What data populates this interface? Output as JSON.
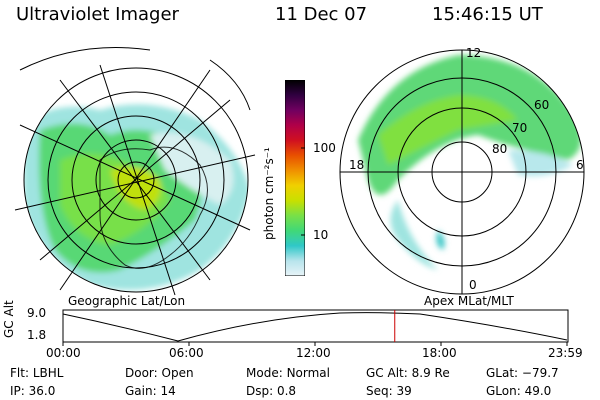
{
  "header": {
    "instrument": "Ultraviolet Imager",
    "date": "11 Dec 07",
    "time": "15:46:15 UT"
  },
  "left_map": {
    "caption": "Geographic Lat/Lon"
  },
  "right_map": {
    "caption": "Apex MLat/MLT",
    "mlt_labels": [
      "12",
      "18",
      "6",
      "0"
    ],
    "mlat_labels": [
      "60",
      "70",
      "80"
    ]
  },
  "colorbar": {
    "unit_label": "photon cm⁻²s⁻¹",
    "tick_labels": [
      "100",
      "10"
    ],
    "colors": [
      "#e8f4f8",
      "#b8e4ec",
      "#30c8c8",
      "#40d878",
      "#78e048",
      "#c8e000",
      "#f0d000",
      "#f09000",
      "#e85000",
      "#d01020",
      "#b00048",
      "#700060",
      "#300040",
      "#000000"
    ]
  },
  "altitude_plot": {
    "axis_label": "GC Alt",
    "y_max_label": "9.0",
    "y_min_label": "1.8",
    "time_ticks": [
      "00:00",
      "06:00",
      "12:00",
      "18:00",
      "23:59"
    ],
    "current_time_marker": "15:46",
    "marker_color": "#cc0000"
  },
  "status": {
    "filter": {
      "label": "Flt:",
      "value": "LBHL"
    },
    "ip": {
      "label": "IP:",
      "value": "36.0"
    },
    "door": {
      "label": "Door:",
      "value": "Open"
    },
    "gain": {
      "label": "Gain:",
      "value": "14"
    },
    "mode": {
      "label": "Mode:",
      "value": "Normal"
    },
    "dsp": {
      "label": "Dsp:",
      "value": "0.8"
    },
    "gc_alt": {
      "label": "GC Alt:",
      "value": "8.9 Re"
    },
    "seq": {
      "label": "Seq:",
      "value": "39"
    },
    "glat": {
      "label": "GLat:",
      "value": "−79.7"
    },
    "glon": {
      "label": "GLon:",
      "value": "49.0"
    }
  }
}
